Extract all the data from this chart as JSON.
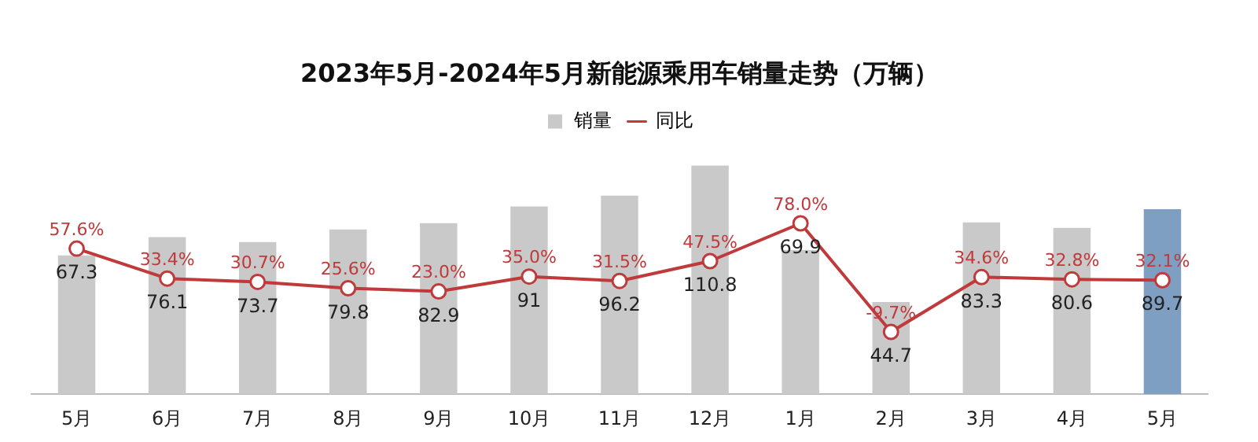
{
  "chart_data": {
    "type": "bar",
    "title": "2023年5月-2024年5月新能源乘用车销量走势（万辆）",
    "categories": [
      "5月",
      "6月",
      "7月",
      "8月",
      "9月",
      "10月",
      "11月",
      "12月",
      "1月",
      "2月",
      "3月",
      "4月",
      "5月"
    ],
    "series": [
      {
        "name": "销量",
        "colors": [
          "#c9c9c9",
          "#c9c9c9",
          "#c9c9c9",
          "#c9c9c9",
          "#c9c9c9",
          "#c9c9c9",
          "#c9c9c9",
          "#c9c9c9",
          "#c9c9c9",
          "#c9c9c9",
          "#c9c9c9",
          "#c9c9c9",
          "#7f9fc2"
        ],
        "values": [
          67.3,
          76.1,
          73.7,
          79.8,
          82.9,
          91,
          96.2,
          110.8,
          69.9,
          44.7,
          83.3,
          80.6,
          89.7
        ]
      },
      {
        "name": "同比",
        "type": "line",
        "color": "#c0393b",
        "axis": "y2",
        "marker": "circle",
        "values": [
          57.6,
          33.4,
          30.7,
          25.6,
          23.0,
          35.0,
          31.5,
          47.5,
          78.0,
          -9.7,
          34.6,
          32.8,
          32.1
        ],
        "value_labels": [
          "57.6%",
          "33.4%",
          "30.7%",
          "25.6%",
          "23.0%",
          "35.0%",
          "31.5%",
          "47.5%",
          "78.0%",
          "-9.7%",
          "34.6%",
          "32.8%",
          "32.1%"
        ]
      }
    ],
    "data_labels": true,
    "legend": "top",
    "grid": false,
    "tick_labels": "x"
  }
}
